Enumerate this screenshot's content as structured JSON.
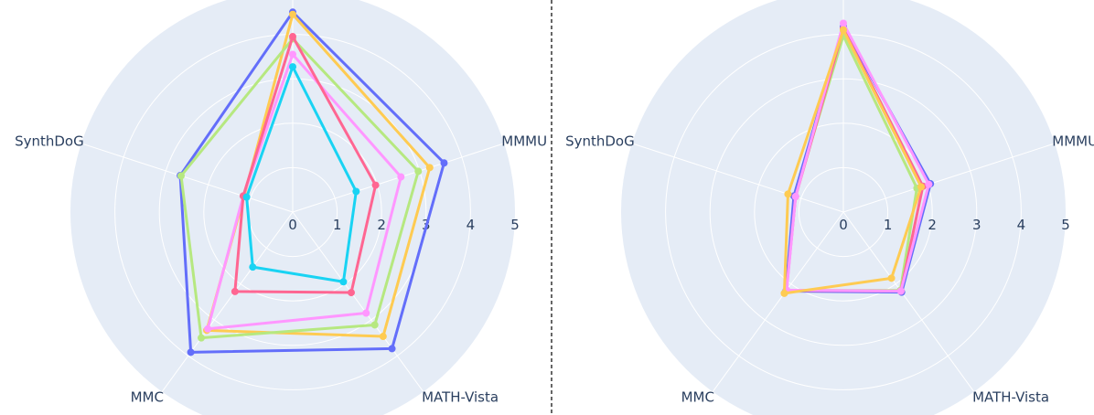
{
  "chart_data": [
    {
      "type": "radar",
      "categories": [
        null,
        "MMMU",
        "MATH-Vista",
        "MMC",
        "SynthDoG"
      ],
      "rlim": [
        0,
        5
      ],
      "rticks": [
        0,
        1,
        2,
        3,
        4,
        5
      ],
      "grid": true,
      "series": [
        {
          "color": "#636efa",
          "values": [
            4.5,
            3.58,
            3.8,
            3.9,
            2.66
          ]
        },
        {
          "color": "#fecb52",
          "values": [
            4.45,
            3.24,
            3.46,
            3.29,
            1.15
          ]
        },
        {
          "color": "#b6e880",
          "values": [
            3.9,
            2.97,
            3.14,
            3.5,
            2.64
          ]
        },
        {
          "color": "#ff97ff",
          "values": [
            3.55,
            2.56,
            2.81,
            3.25,
            1.17
          ]
        },
        {
          "color": "#ff6692",
          "values": [
            3.95,
            1.96,
            2.24,
            2.21,
            1.17
          ]
        },
        {
          "color": "#19d3f3",
          "values": [
            3.27,
            1.5,
            1.94,
            1.53,
            1.09
          ]
        }
      ]
    },
    {
      "type": "radar",
      "categories": [
        null,
        "MMMU",
        "MATH-Vista",
        "MMC",
        "SynthDoG"
      ],
      "rlim": [
        0,
        5
      ],
      "rticks": [
        0,
        1,
        2,
        3,
        4,
        5
      ],
      "grid": true,
      "series": [
        {
          "color": "#b6e880",
          "values": [
            3.97,
            1.74,
            2.18,
            2.18,
            1.15
          ]
        },
        {
          "color": "#636efa",
          "values": [
            4.17,
            2.06,
            2.23,
            2.2,
            1.17
          ]
        },
        {
          "color": "#ff6692",
          "values": [
            4.13,
            1.88,
            2.2,
            2.18,
            1.13
          ]
        },
        {
          "color": "#ff97ff",
          "values": [
            4.25,
            2.02,
            2.2,
            2.17,
            1.13
          ]
        },
        {
          "color": "#fecb52",
          "values": [
            4.1,
            1.84,
            1.84,
            2.26,
            1.31
          ]
        }
      ]
    }
  ]
}
